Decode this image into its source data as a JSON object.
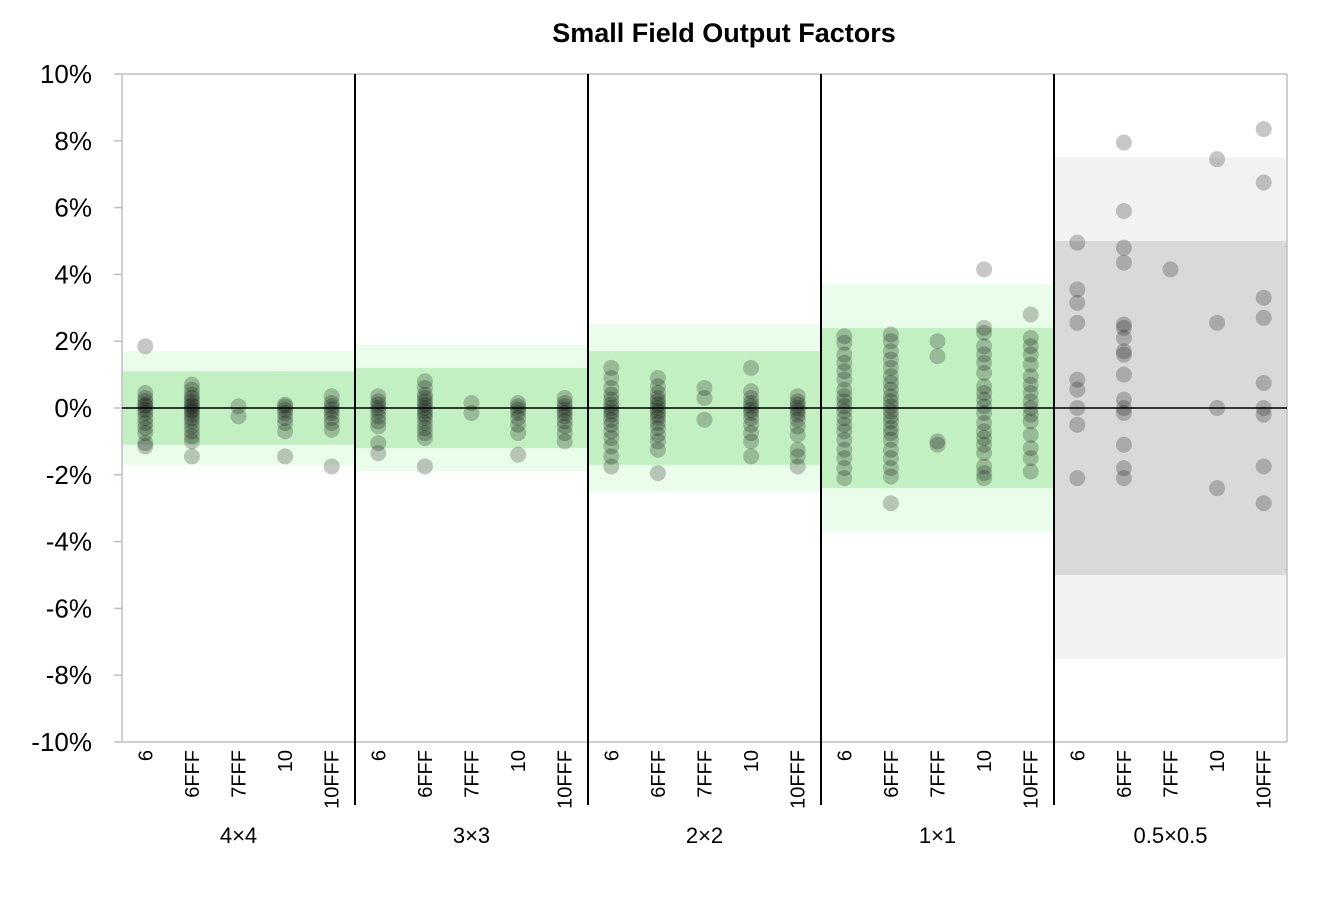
{
  "chart_data": {
    "type": "scatter",
    "title": "Small Field Output Factors",
    "xlabel": "",
    "ylabel": "",
    "ylim": [
      -10,
      10
    ],
    "ytick_values": [
      -10,
      -8,
      -6,
      -4,
      -2,
      0,
      2,
      4,
      6,
      8,
      10
    ],
    "ytick_labels": [
      "-10%",
      "-8%",
      "-6%",
      "-4%",
      "-2%",
      "0%",
      "2%",
      "4%",
      "6%",
      "8%",
      "10%"
    ],
    "energies": [
      "6",
      "6FFF",
      "7FFF",
      "10",
      "10FFF"
    ],
    "grid": false,
    "legend": "none",
    "marker_color": "#000000",
    "colors": {
      "inner_band": "#c2f0c2",
      "outer_band": "#eafdea",
      "inner_band_small": "#d9d9d9",
      "outer_band_small": "#f2f2f2",
      "divider": "#000000"
    },
    "groups": [
      {
        "name": "4×4",
        "inner_band": [
          -1.1,
          1.1
        ],
        "outer_band": [
          -1.7,
          1.7
        ],
        "band_style": "green",
        "series": [
          {
            "energy": "6",
            "values": [
              1.85,
              0.45,
              0.3,
              0.2,
              0.1,
              0.05,
              -0.05,
              -0.15,
              -0.3,
              -0.45,
              -0.6,
              -0.75,
              -1.05,
              -1.15
            ]
          },
          {
            "energy": "6FFF",
            "values": [
              0.7,
              0.55,
              0.4,
              0.3,
              0.2,
              0.1,
              0.05,
              -0.05,
              -0.1,
              -0.2,
              -0.3,
              -0.4,
              -0.55,
              -0.7,
              -0.85,
              -1.0,
              -1.45
            ]
          },
          {
            "energy": "7FFF",
            "values": [
              0.05,
              -0.25
            ]
          },
          {
            "energy": "10",
            "values": [
              0.1,
              0.05,
              -0.05,
              -0.15,
              -0.3,
              -0.45,
              -0.7,
              -1.45
            ]
          },
          {
            "energy": "10FFF",
            "values": [
              0.35,
              0.15,
              0.05,
              -0.05,
              -0.15,
              -0.3,
              -0.45,
              -0.65,
              -1.75
            ]
          }
        ]
      },
      {
        "name": "3×3",
        "inner_band": [
          -1.2,
          1.2
        ],
        "outer_band": [
          -1.9,
          1.9
        ],
        "band_style": "green",
        "series": [
          {
            "energy": "6",
            "values": [
              0.35,
              0.2,
              0.1,
              0.0,
              -0.1,
              -0.25,
              -0.4,
              -0.55,
              -1.05,
              -1.35
            ]
          },
          {
            "energy": "6FFF",
            "values": [
              0.8,
              0.6,
              0.4,
              0.3,
              0.2,
              0.1,
              0.0,
              -0.1,
              -0.2,
              -0.3,
              -0.45,
              -0.6,
              -0.75,
              -0.9,
              -1.75
            ]
          },
          {
            "energy": "7FFF",
            "values": [
              0.15,
              -0.15
            ]
          },
          {
            "energy": "10",
            "values": [
              0.15,
              0.05,
              -0.05,
              -0.15,
              -0.3,
              -0.5,
              -0.75,
              -1.4
            ]
          },
          {
            "energy": "10FFF",
            "values": [
              0.3,
              0.15,
              0.05,
              -0.05,
              -0.15,
              -0.25,
              -0.4,
              -0.55,
              -0.75,
              -1.0
            ]
          }
        ]
      },
      {
        "name": "2×2",
        "inner_band": [
          -1.7,
          1.7
        ],
        "outer_band": [
          -2.5,
          2.5
        ],
        "band_style": "green",
        "series": [
          {
            "energy": "6",
            "values": [
              1.2,
              0.9,
              0.6,
              0.4,
              0.25,
              0.1,
              0.0,
              -0.1,
              -0.2,
              -0.35,
              -0.5,
              -0.7,
              -0.9,
              -1.15,
              -1.45,
              -1.75
            ]
          },
          {
            "energy": "6FFF",
            "values": [
              0.9,
              0.65,
              0.45,
              0.3,
              0.2,
              0.1,
              0.0,
              -0.1,
              -0.2,
              -0.3,
              -0.45,
              -0.6,
              -0.8,
              -1.0,
              -1.25,
              -1.95
            ]
          },
          {
            "energy": "7FFF",
            "values": [
              0.6,
              0.3,
              -0.35
            ]
          },
          {
            "energy": "10",
            "values": [
              1.2,
              0.5,
              0.3,
              0.15,
              0.05,
              -0.05,
              -0.15,
              -0.3,
              -0.5,
              -0.75,
              -1.0,
              -1.45
            ]
          },
          {
            "energy": "10FFF",
            "values": [
              0.35,
              0.2,
              0.1,
              0.0,
              -0.1,
              -0.2,
              -0.35,
              -0.55,
              -0.8,
              -1.25,
              -1.45,
              -1.75
            ]
          }
        ]
      },
      {
        "name": "1×1",
        "inner_band": [
          -2.4,
          2.4
        ],
        "outer_band": [
          -3.7,
          3.7
        ],
        "band_style": "green",
        "series": [
          {
            "energy": "6",
            "values": [
              2.15,
              1.95,
              1.6,
              1.35,
              1.1,
              0.85,
              0.55,
              0.35,
              0.2,
              0.05,
              -0.1,
              -0.3,
              -0.5,
              -0.7,
              -0.95,
              -1.25,
              -1.5,
              -1.8,
              -2.1
            ]
          },
          {
            "energy": "6FFF",
            "values": [
              2.2,
              2.0,
              1.7,
              1.45,
              1.2,
              0.95,
              0.75,
              0.55,
              0.35,
              0.2,
              0.05,
              -0.1,
              -0.25,
              -0.4,
              -0.6,
              -0.75,
              -0.95,
              -1.25,
              -1.5,
              -1.8,
              -2.05,
              -2.85
            ]
          },
          {
            "energy": "7FFF",
            "values": [
              2.0,
              1.55,
              -1.0,
              -1.1
            ]
          },
          {
            "energy": "10",
            "values": [
              4.15,
              2.4,
              2.25,
              1.85,
              1.6,
              1.35,
              1.05,
              0.65,
              0.45,
              0.25,
              0.05,
              -0.15,
              -0.45,
              -0.7,
              -0.9,
              -1.1,
              -1.35,
              -1.75,
              -1.95,
              -2.1
            ]
          },
          {
            "energy": "10FFF",
            "values": [
              2.8,
              2.1,
              1.85,
              1.6,
              1.3,
              0.95,
              0.7,
              0.45,
              0.2,
              0.0,
              -0.2,
              -0.4,
              -0.8,
              -1.2,
              -1.5,
              -1.9
            ]
          }
        ]
      },
      {
        "name": "0.5×0.5",
        "inner_band": [
          -5,
          5
        ],
        "outer_band": [
          -7.5,
          7.5
        ],
        "band_style": "gray",
        "series": [
          {
            "energy": "6",
            "values": [
              4.95,
              3.55,
              3.15,
              2.55,
              0.85,
              0.55,
              0.0,
              -0.5,
              -2.1
            ]
          },
          {
            "energy": "6FFF",
            "values": [
              7.95,
              5.9,
              4.8,
              4.35,
              2.5,
              2.4,
              2.1,
              1.7,
              1.6,
              1.0,
              0.25,
              0.0,
              -0.15,
              -1.1,
              -1.8,
              -2.1
            ]
          },
          {
            "energy": "7FFF",
            "values": [
              4.15
            ]
          },
          {
            "energy": "10",
            "values": [
              7.45,
              2.55,
              0.0,
              -2.4
            ]
          },
          {
            "energy": "10FFF",
            "values": [
              8.35,
              6.75,
              3.3,
              2.7,
              0.75,
              0.0,
              -0.2,
              -1.75,
              -2.85
            ]
          }
        ]
      }
    ]
  }
}
